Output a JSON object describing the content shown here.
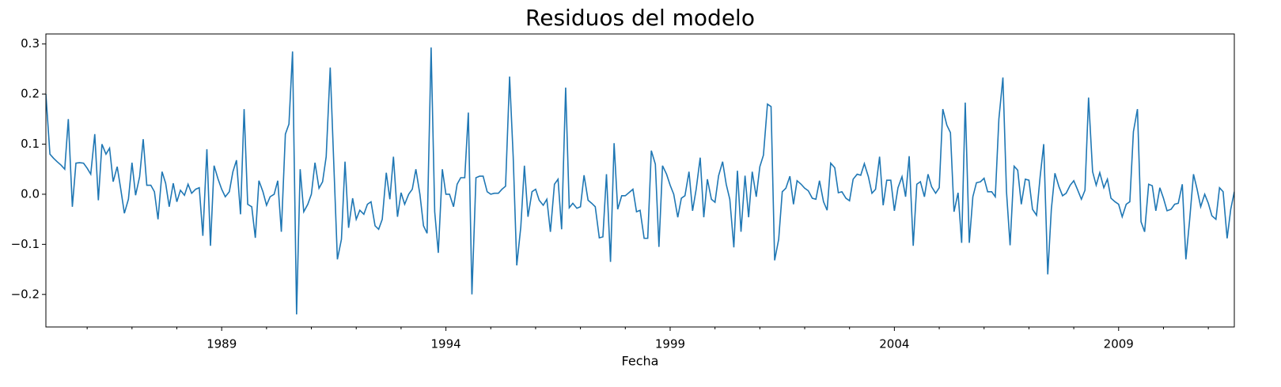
{
  "chart_data": {
    "type": "line",
    "title": "Residuos del modelo",
    "x_label": "Fecha",
    "xlim": [
      1985.08,
      2011.58
    ],
    "xticks": [
      1989,
      1994,
      1999,
      2004,
      2009
    ],
    "xminorticks": [
      1986,
      1987,
      1988,
      1990,
      1991,
      1992,
      1993,
      1995,
      1996,
      1997,
      1998,
      2000,
      2001,
      2002,
      2003,
      2005,
      2006,
      2007,
      2008,
      2010,
      2011
    ],
    "ylim": [
      -0.265,
      0.32
    ],
    "yticks": [
      {
        "value": -0.2,
        "label": "−0.2"
      },
      {
        "value": -0.1,
        "label": "−0.1"
      },
      {
        "value": 0,
        "label": "0.0"
      },
      0.1,
      0.2,
      0.3
    ],
    "series": [
      {
        "color": "#1f77b4",
        "x": [
          1985.08,
          1985.17,
          1985.25,
          1985.33,
          1985.42,
          1985.5,
          1985.58,
          1985.67,
          1985.75,
          1985.83,
          1985.92,
          1986,
          1986.08,
          1986.17,
          1986.25,
          1986.33,
          1986.42,
          1986.5,
          1986.58,
          1986.67,
          1986.75,
          1986.83,
          1986.92,
          1987,
          1987.08,
          1987.17,
          1987.25,
          1987.33,
          1987.42,
          1987.5,
          1987.58,
          1987.67,
          1987.75,
          1987.83,
          1987.92,
          1988,
          1988.08,
          1988.17,
          1988.25,
          1988.33,
          1988.42,
          1988.5,
          1988.58,
          1988.67,
          1988.75,
          1988.83,
          1988.92,
          1989,
          1989.08,
          1989.17,
          1989.25,
          1989.33,
          1989.42,
          1989.5,
          1989.58,
          1989.67,
          1989.75,
          1989.83,
          1989.92,
          1990,
          1990.08,
          1990.17,
          1990.25,
          1990.33,
          1990.42,
          1990.5,
          1990.58,
          1990.67,
          1990.75,
          1990.83,
          1990.92,
          1991,
          1991.08,
          1991.17,
          1991.25,
          1991.33,
          1991.42,
          1991.5,
          1991.58,
          1991.67,
          1991.75,
          1991.83,
          1991.92,
          1992,
          1992.08,
          1992.17,
          1992.25,
          1992.33,
          1992.42,
          1992.5,
          1992.58,
          1992.67,
          1992.75,
          1992.83,
          1992.92,
          1993,
          1993.08,
          1993.17,
          1993.25,
          1993.33,
          1993.42,
          1993.5,
          1993.58,
          1993.67,
          1993.75,
          1993.83,
          1993.92,
          1994,
          1994.08,
          1994.17,
          1994.25,
          1994.33,
          1994.42,
          1994.5,
          1994.58,
          1994.67,
          1994.75,
          1994.83,
          1994.92,
          1995,
          1995.08,
          1995.17,
          1995.25,
          1995.33,
          1995.42,
          1995.5,
          1995.58,
          1995.67,
          1995.75,
          1995.83,
          1995.92,
          1996,
          1996.08,
          1996.17,
          1996.25,
          1996.33,
          1996.42,
          1996.5,
          1996.58,
          1996.67,
          1996.75,
          1996.83,
          1996.92,
          1997,
          1997.08,
          1997.17,
          1997.25,
          1997.33,
          1997.42,
          1997.5,
          1997.58,
          1997.67,
          1997.75,
          1997.83,
          1997.92,
          1998,
          1998.08,
          1998.17,
          1998.25,
          1998.33,
          1998.42,
          1998.5,
          1998.58,
          1998.67,
          1998.75,
          1998.83,
          1998.92,
          1999,
          1999.08,
          1999.17,
          1999.25,
          1999.33,
          1999.42,
          1999.5,
          1999.58,
          1999.67,
          1999.75,
          1999.83,
          1999.92,
          2000,
          2000.08,
          2000.17,
          2000.25,
          2000.33,
          2000.42,
          2000.5,
          2000.58,
          2000.67,
          2000.75,
          2000.83,
          2000.92,
          2001,
          2001.08,
          2001.17,
          2001.25,
          2001.33,
          2001.42,
          2001.5,
          2001.58,
          2001.67,
          2001.75,
          2001.83,
          2001.92,
          2002,
          2002.08,
          2002.17,
          2002.25,
          2002.33,
          2002.42,
          2002.5,
          2002.58,
          2002.67,
          2002.75,
          2002.83,
          2002.92,
          2003,
          2003.08,
          2003.17,
          2003.25,
          2003.33,
          2003.42,
          2003.5,
          2003.58,
          2003.67,
          2003.75,
          2003.83,
          2003.92,
          2004,
          2004.08,
          2004.17,
          2004.25,
          2004.33,
          2004.42,
          2004.5,
          2004.58,
          2004.67,
          2004.75,
          2004.83,
          2004.92,
          2005,
          2005.08,
          2005.17,
          2005.25,
          2005.33,
          2005.42,
          2005.5,
          2005.58,
          2005.67,
          2005.75,
          2005.83,
          2005.92,
          2006,
          2006.08,
          2006.17,
          2006.25,
          2006.33,
          2006.42,
          2006.5,
          2006.58,
          2006.67,
          2006.75,
          2006.83,
          2006.92,
          2007,
          2007.08,
          2007.17,
          2007.25,
          2007.33,
          2007.42,
          2007.5,
          2007.58,
          2007.67,
          2007.75,
          2007.83,
          2007.92,
          2008,
          2008.08,
          2008.17,
          2008.25,
          2008.33,
          2008.42,
          2008.5,
          2008.58,
          2008.67,
          2008.75,
          2008.83,
          2008.92,
          2009,
          2009.08,
          2009.17,
          2009.25,
          2009.33,
          2009.42,
          2009.5,
          2009.58,
          2009.67,
          2009.75,
          2009.83,
          2009.92,
          2010,
          2010.08,
          2010.17,
          2010.25,
          2010.33,
          2010.42,
          2010.5,
          2010.58,
          2010.67,
          2010.75,
          2010.83,
          2010.92,
          2011,
          2011.08,
          2011.17,
          2011.25,
          2011.33,
          2011.42,
          2011.5,
          2011.58
        ],
        "values": [
          0.2,
          0.08,
          0.072,
          0.065,
          0.058,
          0.05,
          0.15,
          -0.025,
          0.062,
          0.063,
          0.062,
          0.052,
          0.04,
          0.12,
          -0.012,
          0.1,
          0.08,
          0.092,
          0.025,
          0.055,
          0.01,
          -0.038,
          -0.01,
          0.063,
          -0.002,
          0.035,
          0.11,
          0.018,
          0.018,
          0.005,
          -0.05,
          0.045,
          0.022,
          -0.025,
          0.022,
          -0.015,
          0.008,
          -0.002,
          0.02,
          0.002,
          0.01,
          0.013,
          -0.083,
          0.09,
          -0.103,
          0.057,
          0.03,
          0.01,
          -0.005,
          0.005,
          0.045,
          0.068,
          -0.04,
          0.17,
          -0.02,
          -0.025,
          -0.087,
          0.027,
          0.005,
          -0.022,
          -0.005,
          0.0,
          0.027,
          -0.075,
          0.12,
          0.14,
          0.285,
          -0.24,
          0.05,
          -0.035,
          -0.02,
          0.0,
          0.063,
          0.012,
          0.025,
          0.075,
          0.253,
          0.06,
          -0.13,
          -0.09,
          0.065,
          -0.067,
          -0.008,
          -0.05,
          -0.032,
          -0.04,
          -0.02,
          -0.015,
          -0.063,
          -0.07,
          -0.05,
          0.043,
          -0.01,
          0.075,
          -0.045,
          0.003,
          -0.02,
          0.0,
          0.01,
          0.05,
          0.0,
          -0.063,
          -0.078,
          0.293,
          -0.035,
          -0.117,
          0.05,
          0.0,
          0.0,
          -0.025,
          0.02,
          0.033,
          0.033,
          0.163,
          -0.2,
          0.033,
          0.036,
          0.036,
          0.005,
          0.0,
          0.002,
          0.002,
          0.01,
          0.016,
          0.235,
          0.075,
          -0.142,
          -0.065,
          0.057,
          -0.045,
          0.005,
          0.01,
          -0.012,
          -0.022,
          -0.01,
          -0.075,
          0.02,
          0.03,
          -0.07,
          0.213,
          -0.027,
          -0.018,
          -0.028,
          -0.025,
          0.038,
          -0.012,
          -0.018,
          -0.025,
          -0.087,
          -0.085,
          0.04,
          -0.135,
          0.102,
          -0.03,
          -0.003,
          -0.003,
          0.003,
          0.01,
          -0.035,
          -0.032,
          -0.088,
          -0.088,
          0.087,
          0.06,
          -0.105,
          0.057,
          0.04,
          0.018,
          0.0,
          -0.046,
          -0.008,
          -0.003,
          0.045,
          -0.033,
          0.01,
          0.073,
          -0.046,
          0.03,
          -0.01,
          -0.016,
          0.037,
          0.065,
          0.02,
          -0.01,
          -0.106,
          0.047,
          -0.075,
          0.037,
          -0.046,
          0.045,
          -0.005,
          0.055,
          0.078,
          0.18,
          0.175,
          -0.132,
          -0.09,
          0.005,
          0.012,
          0.036,
          -0.02,
          0.027,
          0.02,
          0.012,
          0.007,
          -0.008,
          -0.01,
          0.027,
          -0.015,
          -0.032,
          0.062,
          0.053,
          0.003,
          0.005,
          -0.008,
          -0.013,
          0.03,
          0.04,
          0.038,
          0.061,
          0.035,
          0.002,
          0.01,
          0.075,
          -0.022,
          0.028,
          0.028,
          -0.033,
          0.013,
          0.035,
          -0.005,
          0.076,
          -0.103,
          0.02,
          0.025,
          -0.005,
          0.04,
          0.015,
          0.002,
          0.013,
          0.17,
          0.138,
          0.123,
          -0.035,
          0.003,
          -0.097,
          0.183,
          -0.097,
          -0.005,
          0.023,
          0.025,
          0.032,
          0.005,
          0.005,
          -0.005,
          0.15,
          0.233,
          0.005,
          -0.102,
          0.056,
          0.048,
          -0.02,
          0.03,
          0.028,
          -0.03,
          -0.042,
          0.035,
          0.1,
          -0.16,
          -0.03,
          0.042,
          0.015,
          -0.003,
          0.002,
          0.018,
          0.027,
          0.01,
          -0.01,
          0.008,
          0.193,
          0.045,
          0.018,
          0.043,
          0.013,
          0.03,
          -0.008,
          -0.015,
          -0.02,
          -0.045,
          -0.02,
          -0.015,
          0.125,
          0.17,
          -0.055,
          -0.075,
          0.02,
          0.017,
          -0.033,
          0.013,
          -0.008,
          -0.033,
          -0.03,
          -0.02,
          -0.018,
          0.02,
          -0.13,
          -0.055,
          0.04,
          0.01,
          -0.025,
          0.0,
          -0.018,
          -0.043,
          -0.05,
          0.013,
          0.005,
          -0.088,
          -0.03,
          0.005
        ]
      }
    ]
  }
}
